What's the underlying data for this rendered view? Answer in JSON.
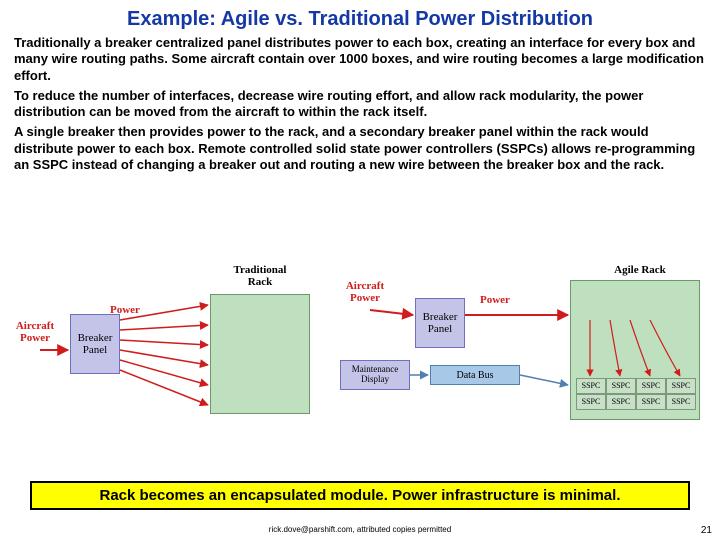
{
  "title": {
    "text": "Example: Agile vs. Traditional Power Distribution",
    "color": "#1438a6",
    "fontsize": 20
  },
  "paragraphs": [
    "Traditionally a breaker centralized panel distributes power to each box, creating an interface for every box and many wire routing paths. Some aircraft contain over 1000 boxes, and wire routing becomes a large modification effort.",
    "To reduce the number of interfaces, decrease wire routing effort, and allow rack modularity, the power distribution can be moved from the aircraft to within the rack itself.",
    "A single breaker then provides power to the rack, and a secondary breaker panel within the rack would distribute power to each box. Remote controlled solid state power controllers (SSPCs) allows re-programming an SSPC instead of changing a breaker out and routing a new wire between the breaker box and the rack."
  ],
  "footer": "Rack becomes an encapsulated module. Power infrastructure is minimal.",
  "attribution": "rick.dove@parshift.com, attributed copies permitted",
  "page_number": "21",
  "colors": {
    "title": "#1438a6",
    "body": "#000000",
    "footer_bg": "#ffff00",
    "power_red": "#d01c1c",
    "rack_fill": "#bfe0bf",
    "rack_border": "#6a9a6a",
    "breaker_fill": "#c4c4e8",
    "breaker_border": "#7070c0",
    "databus_fill": "#a8c8e8",
    "databus_border": "#5080b0"
  },
  "diagram": {
    "left": {
      "aircraft_power": "Aircraft\nPower",
      "power": "Power",
      "breaker_panel": "Breaker\nPanel",
      "trad_rack": "Traditional\nRack"
    },
    "right": {
      "aircraft_power": "Aircraft\nPower",
      "power": "Power",
      "breaker_panel": "Breaker\nPanel",
      "agile_rack": "Agile Rack",
      "maint_display": "Maintenance\nDisplay",
      "data_bus": "Data Bus",
      "sspc": "SSPC"
    }
  }
}
